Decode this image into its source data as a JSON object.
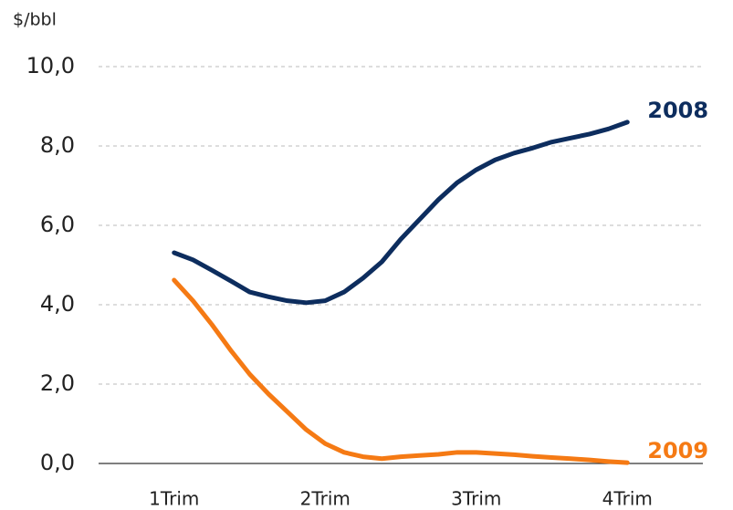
{
  "chart_data": {
    "type": "line",
    "y_label": "$/bbl",
    "x": [
      1,
      1.125,
      1.25,
      1.375,
      1.5,
      1.625,
      1.75,
      1.875,
      2,
      2.125,
      2.25,
      2.375,
      2.5,
      2.625,
      2.75,
      2.875,
      3,
      3.125,
      3.25,
      3.375,
      3.5,
      3.625,
      3.75,
      3.875,
      4
    ],
    "xlim": [
      0.5,
      4.5
    ],
    "xticks": [
      {
        "value": 1,
        "label": "1Trim"
      },
      {
        "value": 2,
        "label": "2Trim"
      },
      {
        "value": 3,
        "label": "3Trim"
      },
      {
        "value": 4,
        "label": "4Trim"
      }
    ],
    "ylim": [
      0,
      10
    ],
    "yticks": [
      {
        "value": 0,
        "label": "0,0"
      },
      {
        "value": 2,
        "label": "2,0"
      },
      {
        "value": 4,
        "label": "4,0"
      },
      {
        "value": 6,
        "label": "6,0"
      },
      {
        "value": 8,
        "label": "8,0"
      },
      {
        "value": 10,
        "label": "10,0"
      }
    ],
    "grid": true,
    "series": [
      {
        "name": "2008",
        "color": "#0d2d5e",
        "values": [
          5.31,
          5.13,
          4.87,
          4.6,
          4.32,
          4.2,
          4.1,
          4.05,
          4.1,
          4.32,
          4.67,
          5.08,
          5.65,
          6.15,
          6.65,
          7.08,
          7.4,
          7.65,
          7.82,
          7.95,
          8.1,
          8.2,
          8.3,
          8.43,
          8.6
        ]
      },
      {
        "name": "2009",
        "color": "#f57a14",
        "values": [
          4.62,
          4.1,
          3.5,
          2.85,
          2.25,
          1.75,
          1.3,
          0.85,
          0.5,
          0.28,
          0.17,
          0.12,
          0.17,
          0.2,
          0.23,
          0.28,
          0.28,
          0.25,
          0.22,
          0.18,
          0.15,
          0.12,
          0.09,
          0.05,
          0.02
        ]
      }
    ]
  }
}
